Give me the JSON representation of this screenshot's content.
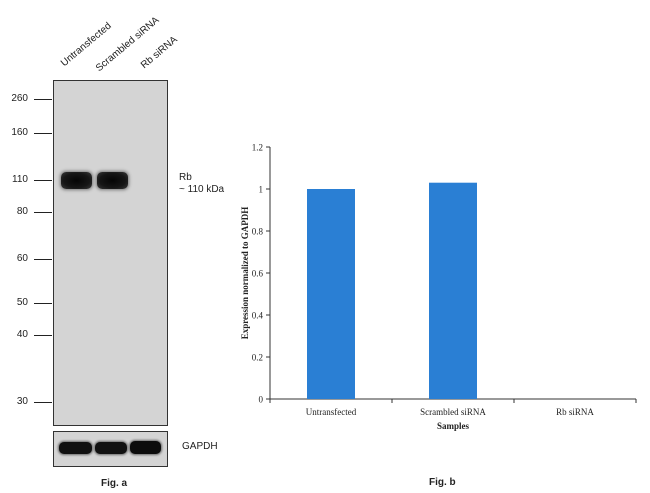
{
  "figure_a": {
    "lanes": [
      "Untransfected",
      "Scrambled siRNA",
      "Rb siRNA"
    ],
    "mw_markers": [
      "260",
      "160",
      "110",
      "80",
      "60",
      "50",
      "40",
      "30"
    ],
    "band_label_line1": "Rb",
    "band_label_line2": "~ 110 kDa",
    "loading_control_label": "GAPDH",
    "caption": "Fig. a"
  },
  "figure_b": {
    "caption": "Fig. b"
  },
  "chart_data": {
    "type": "bar",
    "categories": [
      "Untransfected",
      "Scrambled siRNA",
      "Rb siRNA"
    ],
    "values": [
      1.0,
      1.03,
      0.0
    ],
    "xlabel": "Samples",
    "ylabel": "Expression normalized to GAPDH",
    "ylim": [
      0,
      1.2
    ],
    "yticks": [
      "0",
      "0.2",
      "0.4",
      "0.6",
      "0.8",
      "1",
      "1.2"
    ],
    "bar_color": "#2a7fd4",
    "grid": false,
    "legend": "none"
  }
}
